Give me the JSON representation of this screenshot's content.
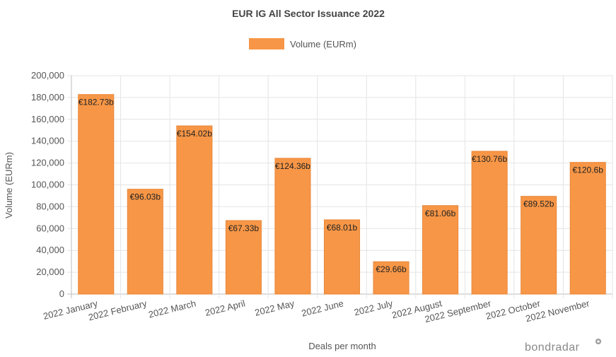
{
  "chart_data": {
    "type": "bar",
    "title": "EUR IG All Sector Issuance 2022",
    "xlabel": "Deals per month",
    "ylabel": "Volume (EURm)",
    "ylim": [
      0,
      200000
    ],
    "yticks": [
      0,
      20000,
      40000,
      60000,
      80000,
      100000,
      120000,
      140000,
      160000,
      180000,
      200000
    ],
    "ytick_labels": [
      "0",
      "20,000",
      "40,000",
      "60,000",
      "80,000",
      "100,000",
      "120,000",
      "140,000",
      "160,000",
      "180,000",
      "200,000"
    ],
    "grid": true,
    "legend_position": "top-center",
    "categories": [
      "2022 January",
      "2022 February",
      "2022 March",
      "2022 April",
      "2022 May",
      "2022 June",
      "2022 July",
      "2022 August",
      "2022 September",
      "2022 October",
      "2022 November"
    ],
    "series": [
      {
        "name": "Volume (EURm)",
        "color": "#f79646",
        "values": [
          182730,
          96030,
          154020,
          67330,
          124360,
          68010,
          29660,
          81060,
          130760,
          89520,
          120600
        ],
        "data_labels": [
          "€182.73b",
          "€96.03b",
          "€154.02b",
          "€67.33b",
          "€124.36b",
          "€68.01b",
          "€29.66b",
          "€81.06b",
          "€130.76b",
          "€89.52b",
          "€120.6b"
        ]
      }
    ]
  },
  "branding": {
    "logo_text": "bondradar"
  }
}
